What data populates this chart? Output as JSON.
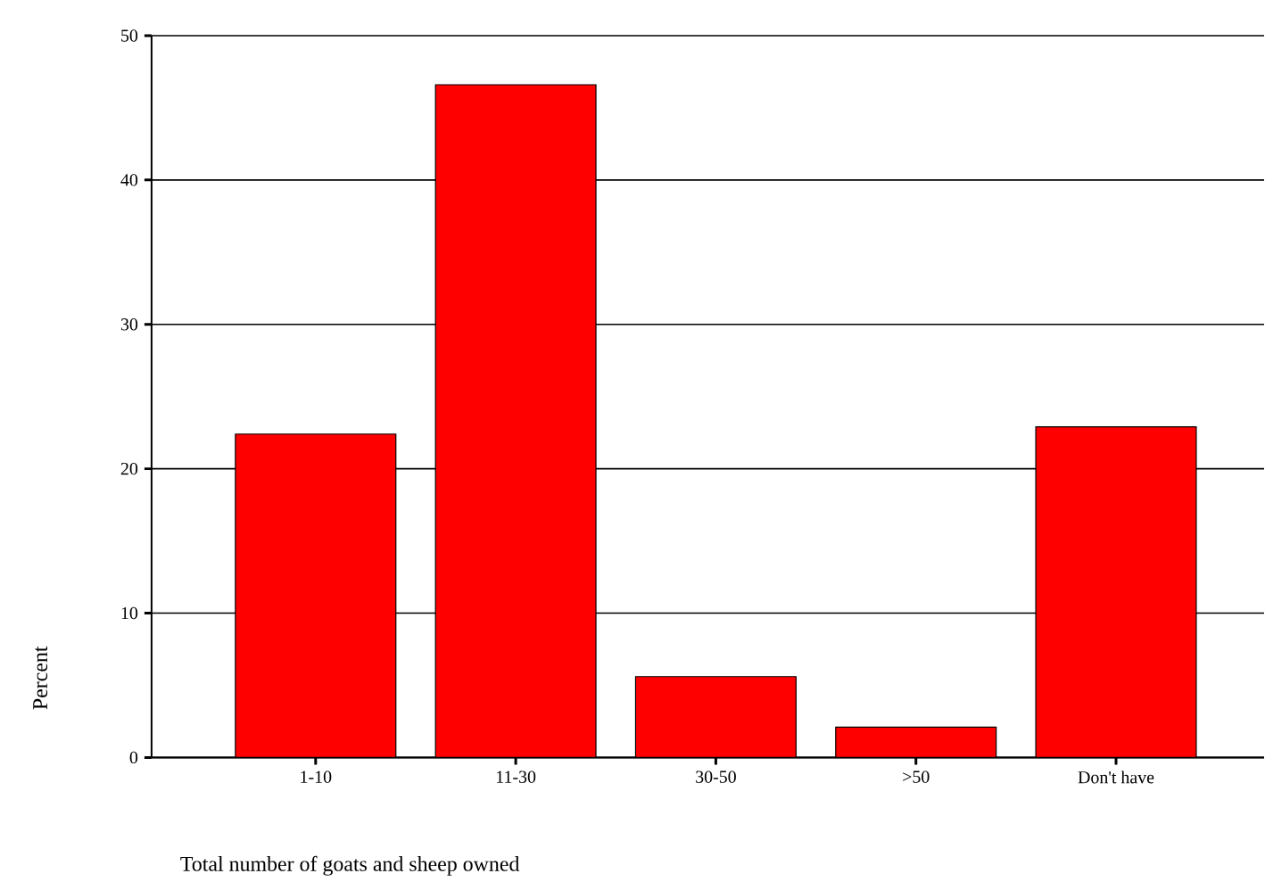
{
  "chart_data": {
    "type": "bar",
    "xlabel": "Total number of goats and sheep owned",
    "ylabel": "Percent",
    "categories": [
      "1-10",
      "11-30",
      "30-50",
      ">50",
      "Don't have"
    ],
    "values": [
      22.4,
      46.6,
      5.6,
      2.1,
      22.9
    ],
    "color": "#ff0000",
    "ylim": [
      0,
      50
    ],
    "yticks": [
      0,
      10,
      20,
      30,
      40,
      50
    ],
    "grid": "y"
  }
}
